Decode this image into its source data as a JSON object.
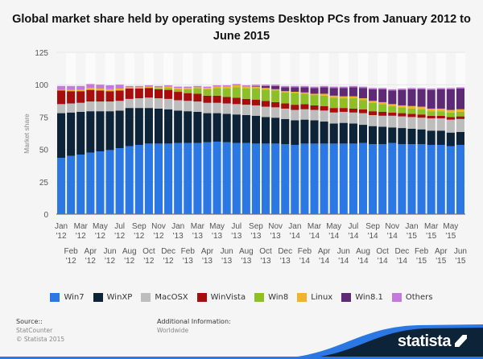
{
  "chart_data": {
    "type": "bar",
    "stacked": true,
    "title": "Global market share held by operating systems Desktop PCs from January 2012 to June 2015",
    "xlabel": "",
    "ylabel": "Market share",
    "ylim": [
      0,
      125
    ],
    "yticks": [
      0,
      25,
      50,
      75,
      100,
      125
    ],
    "grid": true,
    "legend": "bottom",
    "categories": [
      "Jan '12",
      "Feb '12",
      "Mar '12",
      "Apr '12",
      "May '12",
      "Jun '12",
      "Jul '12",
      "Aug '12",
      "Sep '12",
      "Oct '12",
      "Nov '12",
      "Dec '12",
      "Jan '13",
      "Feb '13",
      "Mar '13",
      "Apr '13",
      "May '13",
      "Jun '13",
      "Jul '13",
      "Aug '13",
      "Sep '13",
      "Oct '13",
      "Nov '13",
      "Dec '13",
      "Jan '14",
      "Feb '14",
      "Mar '14",
      "Apr '14",
      "May '14",
      "Jun '14",
      "Jul '14",
      "Aug '14",
      "Sep '14",
      "Oct '14",
      "Nov '14",
      "Dec '14",
      "Jan '15",
      "Feb '15",
      "Mar '15",
      "Apr '15",
      "May '15",
      "Jun '15"
    ],
    "series": [
      {
        "name": "Win7",
        "color": "#2b78e4",
        "values": [
          43.5,
          45,
          46,
          47.5,
          48.5,
          49.5,
          51,
          52.5,
          53.5,
          54.5,
          54.5,
          54.5,
          55,
          55,
          55,
          55.5,
          56,
          55.5,
          55,
          55,
          54.5,
          54.5,
          54.5,
          54,
          53.5,
          54.5,
          54.5,
          54.5,
          54.5,
          54.5,
          54.5,
          55,
          54,
          54,
          55,
          54,
          54,
          54,
          53.5,
          53.5,
          52.5,
          53.5
        ]
      },
      {
        "name": "WinXP",
        "color": "#0d2338",
        "values": [
          34.5,
          33.5,
          33,
          32,
          31,
          30,
          29,
          29.5,
          28.5,
          27.5,
          27,
          26.5,
          25,
          24.5,
          24,
          22.5,
          22,
          22,
          22,
          21.5,
          21.5,
          20.5,
          20,
          19.5,
          19,
          18.5,
          18,
          17,
          15.5,
          16,
          15.5,
          14,
          14,
          13.5,
          12,
          12.5,
          12,
          11.5,
          11,
          11,
          10.5,
          10
        ]
      },
      {
        "name": "MacOSX",
        "color": "#bdbdbd",
        "values": [
          7,
          7,
          7,
          7.5,
          7.5,
          7.5,
          7.5,
          7,
          7.5,
          8,
          8,
          8,
          8,
          8,
          8,
          8,
          8,
          8,
          8,
          8,
          8,
          8,
          8,
          8,
          8,
          8,
          8,
          8.5,
          8.5,
          8.5,
          8.5,
          9,
          8.5,
          8.5,
          9,
          9,
          9,
          9,
          9.5,
          9.5,
          10,
          10
        ]
      },
      {
        "name": "WinVista",
        "color": "#a80d0d",
        "values": [
          10.5,
          9.5,
          9,
          9,
          8.5,
          8,
          8,
          8,
          7.5,
          7.5,
          7,
          7,
          6.5,
          6,
          6,
          5.5,
          5.5,
          5,
          5,
          4.5,
          4.5,
          4.5,
          4,
          4,
          4,
          4,
          3.5,
          3.5,
          3.5,
          3,
          3,
          3,
          3,
          3,
          2.5,
          2.5,
          2.5,
          2.5,
          2,
          2,
          2,
          2
        ]
      },
      {
        "name": "Win8",
        "color": "#8dbf27",
        "values": [
          0,
          0,
          0,
          0,
          0,
          0,
          0,
          0,
          0,
          0,
          0.5,
          1.5,
          2,
          3,
          4,
          5,
          6,
          6.5,
          8,
          8,
          8.5,
          8.5,
          9,
          8.5,
          9,
          8,
          8,
          8,
          8,
          7.5,
          8,
          7,
          6.5,
          6,
          5,
          4.5,
          4,
          4,
          3.5,
          3.5,
          3.5,
          3.5
        ]
      },
      {
        "name": "Linux",
        "color": "#f0b428",
        "values": [
          0.5,
          1,
          1,
          1.5,
          1.5,
          1.5,
          1.5,
          1,
          1,
          1,
          1,
          1,
          1,
          1,
          1,
          1,
          1,
          1.5,
          1.5,
          1.5,
          1.5,
          1.5,
          1,
          1,
          1,
          1,
          1,
          1.5,
          1.5,
          1.5,
          1.5,
          1.5,
          1.5,
          1.5,
          1.5,
          1.5,
          2,
          2,
          2,
          2,
          2,
          2
        ]
      },
      {
        "name": "Win8.1",
        "color": "#5e2a76",
        "values": [
          0,
          0,
          0,
          0,
          0,
          0,
          0,
          0,
          0,
          0,
          0,
          0,
          0,
          0,
          0,
          0,
          0,
          0,
          0,
          0,
          0.5,
          1.5,
          2.5,
          3,
          3.5,
          4,
          4.5,
          5,
          6,
          6.5,
          7,
          8,
          9,
          10,
          10.5,
          12,
          13,
          13.5,
          14.5,
          15,
          16,
          16
        ]
      },
      {
        "name": "Others",
        "color": "#c679dd",
        "values": [
          3,
          3,
          3,
          3,
          3,
          3,
          3,
          1,
          1,
          1,
          1,
          1,
          1,
          1,
          1,
          1,
          1,
          1,
          1,
          1,
          1,
          1,
          1,
          1,
          1,
          1,
          1,
          1,
          1,
          1,
          1,
          1,
          1,
          1,
          1,
          1,
          1,
          1,
          1,
          1,
          1,
          1
        ]
      }
    ]
  },
  "footer": {
    "source_label": "Source::",
    "source_lines": [
      "StatCounter",
      "© Statista 2015"
    ],
    "info_label": "Additional Information:",
    "info_value": "Worldwide",
    "brand": "statista"
  }
}
